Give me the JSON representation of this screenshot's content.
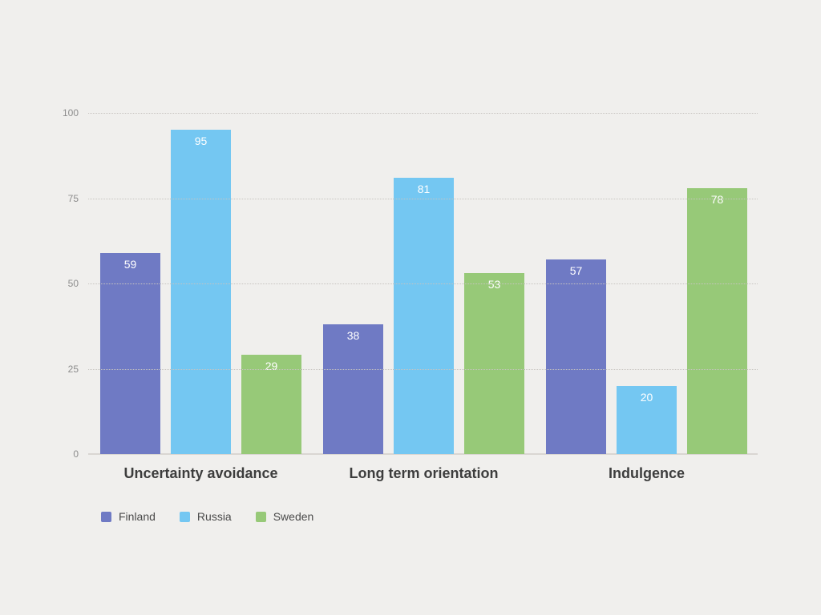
{
  "canvas": {
    "background": "#f0efed"
  },
  "chart_data": {
    "type": "bar",
    "title": "",
    "xlabel": "",
    "ylabel": "",
    "categories": [
      "Uncertainty avoidance",
      "Long term orientation",
      "Indulgence"
    ],
    "series": [
      {
        "name": "Finland",
        "color": "#6f7ac4",
        "values": [
          59,
          38,
          57
        ]
      },
      {
        "name": "Russia",
        "color": "#74c7f2",
        "values": [
          95,
          81,
          20
        ]
      },
      {
        "name": "Sweden",
        "color": "#97c978",
        "values": [
          29,
          53,
          78
        ]
      }
    ],
    "ylim": [
      0,
      100
    ],
    "yticks": [
      0,
      25,
      50,
      75,
      100
    ],
    "grid": "horizontal-dotted",
    "gridline_color": "#c7c4c0",
    "baseline_color": "#d9d6d2",
    "value_labels": "inside-top-white",
    "legend_position": "bottom-left"
  }
}
